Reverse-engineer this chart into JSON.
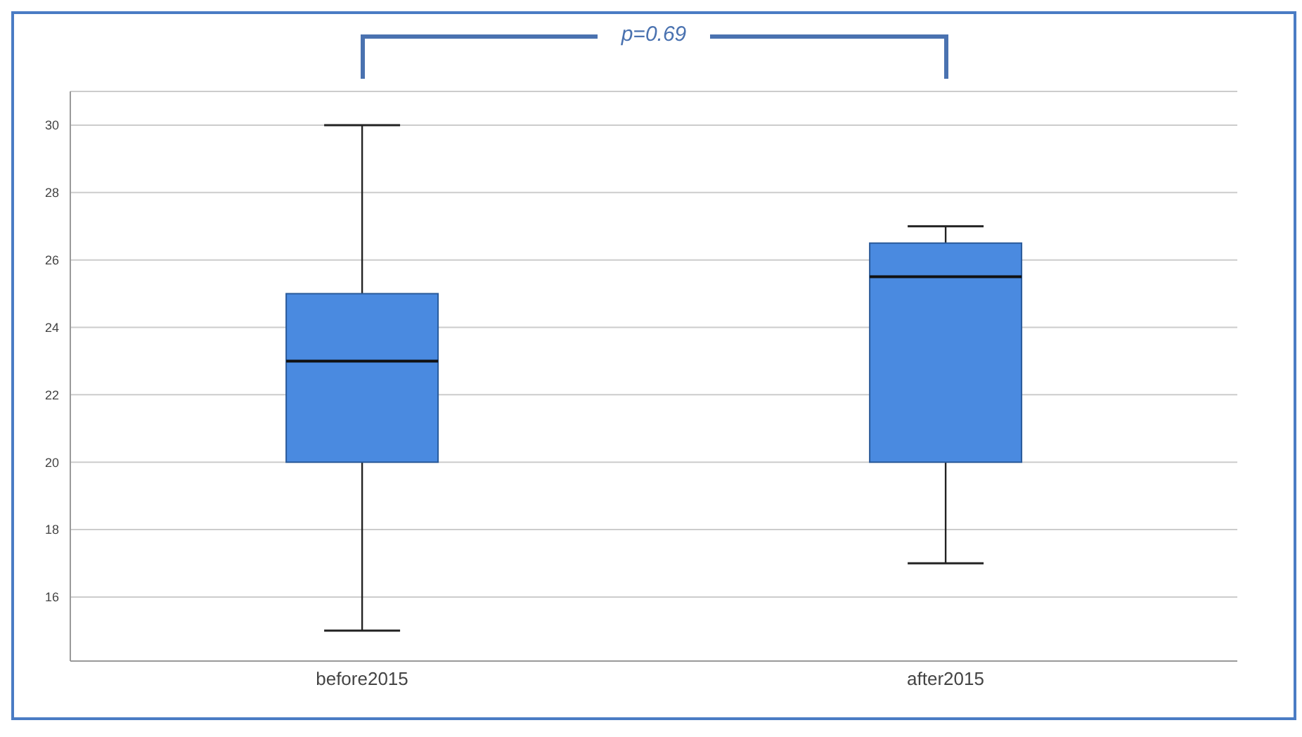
{
  "chart_data": {
    "type": "box",
    "categories": [
      "before2015",
      "after2015"
    ],
    "boxes": [
      {
        "low": 15,
        "q1": 20,
        "median": 23,
        "q3": 25,
        "high": 30
      },
      {
        "low": 17,
        "q1": 20,
        "median": 25.5,
        "q3": 26.5,
        "high": 27
      }
    ],
    "color": "#4a8ae0",
    "ylim": [
      14.1,
      31
    ],
    "yticks": [
      16,
      18,
      20,
      22,
      24,
      26,
      28,
      30
    ],
    "grid": "y",
    "annotations": [
      "p=0.69"
    ]
  }
}
